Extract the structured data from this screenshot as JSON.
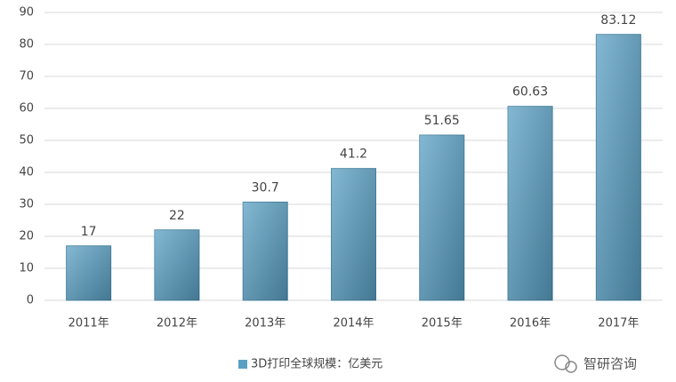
{
  "chart_data": {
    "type": "bar",
    "categories": [
      "2011年",
      "2012年",
      "2013年",
      "2014年",
      "2015年",
      "2016年",
      "2017年"
    ],
    "series": [
      {
        "name": "3D打印全球规模：亿美元",
        "color": "#5aa0c4",
        "values": [
          17,
          22,
          30.7,
          41.2,
          51.65,
          60.63,
          83.12
        ]
      }
    ],
    "ylim": [
      0,
      90
    ],
    "yticks": [
      0,
      10,
      20,
      30,
      40,
      50,
      60,
      70,
      80,
      90
    ],
    "grid": true,
    "legend": "bottom",
    "watermark": "智研咨询"
  }
}
